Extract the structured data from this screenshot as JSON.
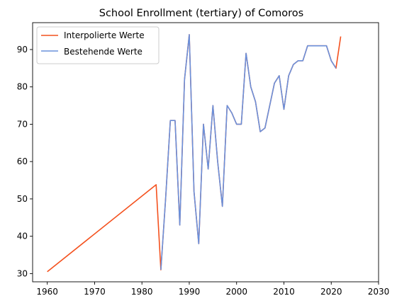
{
  "chart_data": {
    "type": "line",
    "title": "School Enrollment (tertiary) of Comoros",
    "xlabel": "",
    "ylabel": "",
    "xlim": [
      1956.9,
      2030
    ],
    "ylim": [
      27.8,
      97.2
    ],
    "xticks": [
      1960,
      1970,
      1980,
      1990,
      2000,
      2010,
      2020,
      2030
    ],
    "yticks": [
      30,
      40,
      50,
      60,
      70,
      80,
      90
    ],
    "grid": false,
    "legend_position": "top-left",
    "series": [
      {
        "name": "Interpolierte Werte",
        "color": "#f4511e",
        "x": [
          1960,
          1983,
          1984,
          1985,
          1986,
          1987,
          1988,
          1989,
          1990,
          1991,
          1992,
          1993,
          1994,
          1995,
          1996,
          1997,
          1998,
          1999,
          2000,
          2001,
          2002,
          2003,
          2004,
          2005,
          2006,
          2007,
          2008,
          2009,
          2010,
          2011,
          2012,
          2013,
          2014,
          2015,
          2016,
          2017,
          2018,
          2019,
          2020,
          2021,
          2022
        ],
        "y": [
          30.5,
          53.8,
          31,
          50,
          71,
          71,
          43,
          82,
          94,
          52,
          38,
          70,
          58,
          75,
          60,
          48,
          75,
          73,
          70,
          70,
          89,
          80,
          76,
          68,
          69,
          75,
          81,
          83,
          74,
          83,
          86,
          87,
          87,
          91,
          91,
          91,
          91,
          91,
          87,
          85,
          93.5
        ]
      },
      {
        "name": "Bestehende Werte",
        "color": "#6a91dc",
        "x": [
          1984,
          1985,
          1986,
          1987,
          1988,
          1989,
          1990,
          1991,
          1992,
          1993,
          1994,
          1995,
          1996,
          1997,
          1998,
          1999,
          2000,
          2001,
          2002,
          2003,
          2004,
          2005,
          2006,
          2007,
          2008,
          2009,
          2010,
          2011,
          2012,
          2013,
          2014,
          2015,
          2016,
          2017,
          2018,
          2019,
          2020,
          2021
        ],
        "y": [
          31,
          50,
          71,
          71,
          43,
          82,
          94,
          52,
          38,
          70,
          58,
          75,
          60,
          48,
          75,
          73,
          70,
          70,
          89,
          80,
          76,
          68,
          69,
          75,
          81,
          83,
          74,
          83,
          86,
          87,
          87,
          91,
          91,
          91,
          91,
          91,
          87,
          85
        ]
      }
    ]
  }
}
